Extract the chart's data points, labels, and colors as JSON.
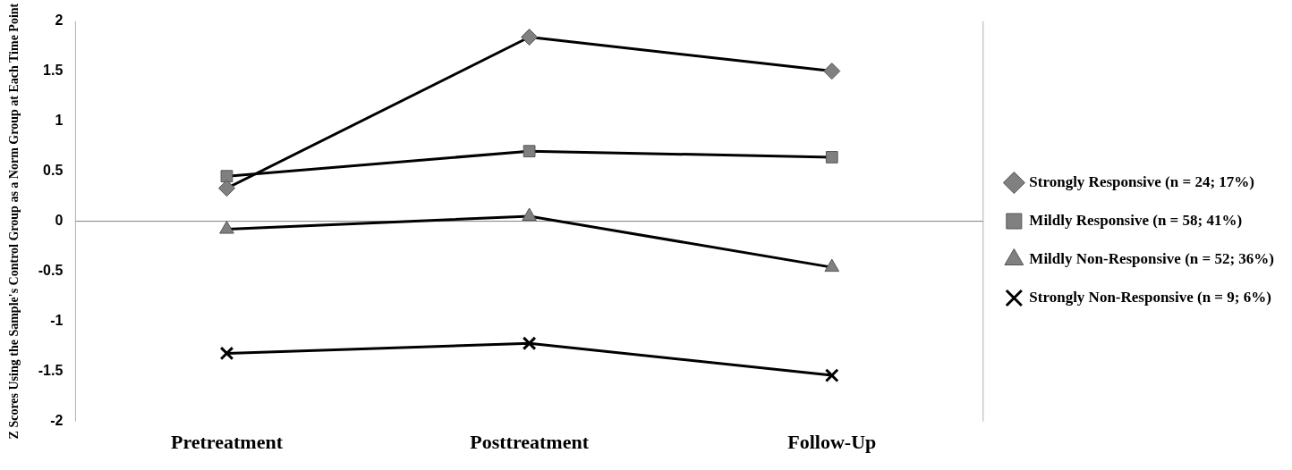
{
  "chart_data": {
    "type": "line",
    "ylabel": "Z Scores Using the Sample's Control Group as a Norm Group at Each Time Point",
    "categories": [
      "Pretreatment",
      "Posttreatment",
      "Follow-Up"
    ],
    "series": [
      {
        "name": "Strongly Responsive (n = 24; 17%)",
        "color": "#808080",
        "marker": "diamond",
        "values": [
          0.33,
          1.84,
          1.5
        ]
      },
      {
        "name": "Mildly Responsive (n = 58; 41%)",
        "color": "#808080",
        "marker": "square",
        "values": [
          0.45,
          0.7,
          0.64
        ]
      },
      {
        "name": "Mildly Non-Responsive (n = 52; 36%)",
        "color": "#808080",
        "marker": "triangle",
        "values": [
          -0.08,
          0.05,
          -0.46
        ]
      },
      {
        "name": "Strongly Non-Responsive (n = 9; 6%)",
        "color": "#000000",
        "marker": "cross",
        "values": [
          -1.32,
          -1.22,
          -1.54
        ]
      }
    ],
    "ylim": [
      -2,
      2
    ],
    "yticks": [
      -2,
      -1.5,
      -1,
      -0.5,
      0,
      0.5,
      1,
      1.5,
      2
    ],
    "ref_lines": [
      {
        "axis": "y",
        "value": 0,
        "color": "#808080"
      }
    ],
    "grid": false,
    "legend": "right",
    "line_style": "solid"
  }
}
